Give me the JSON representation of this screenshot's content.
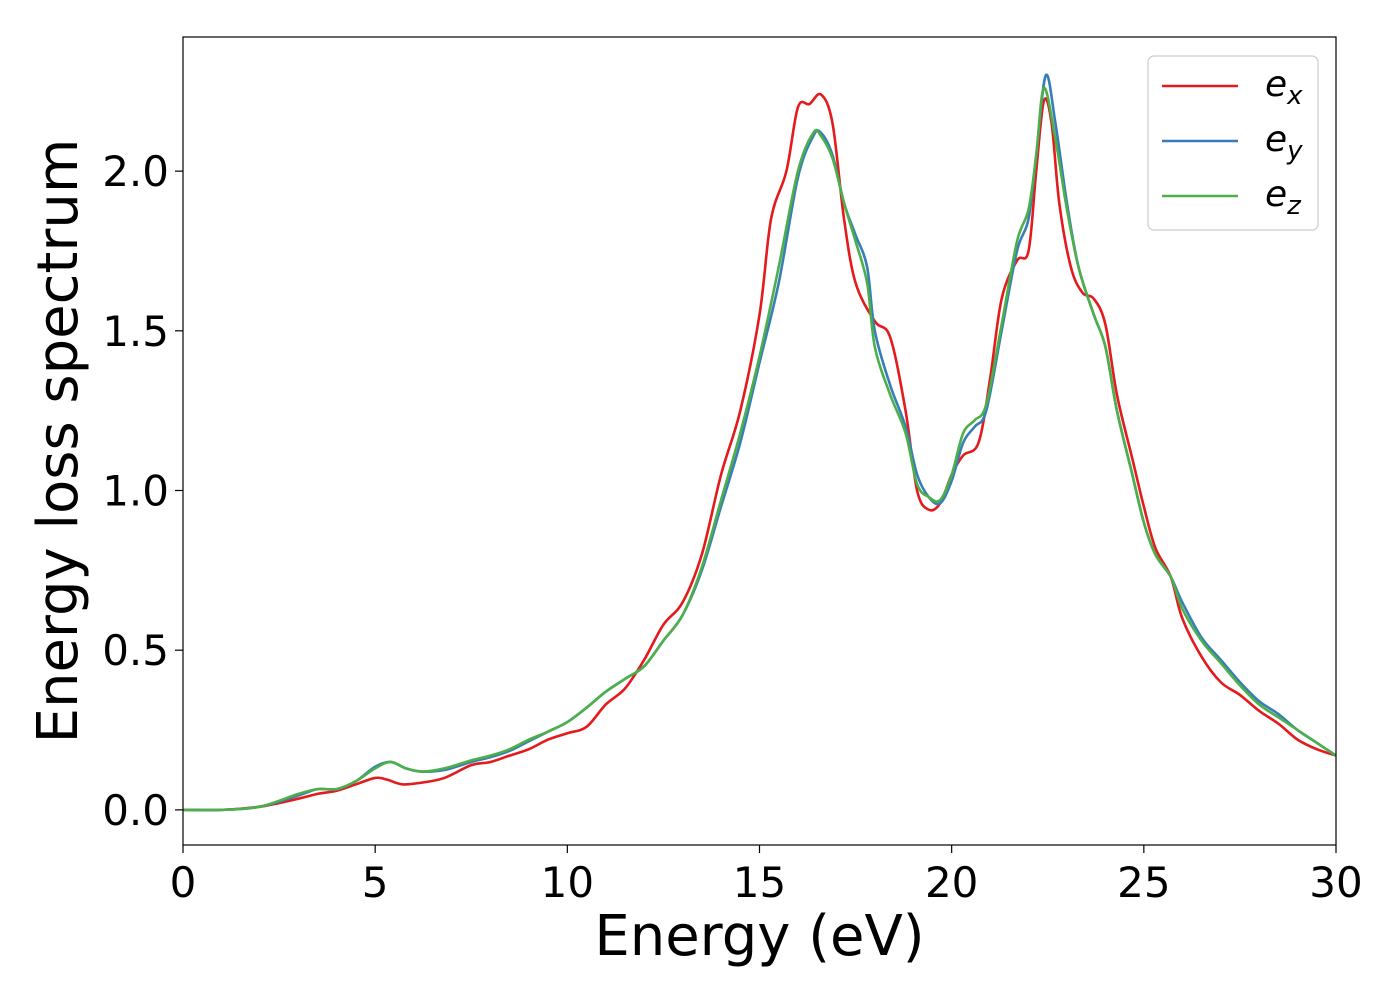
{
  "chart_data": {
    "type": "line",
    "title": "",
    "xlabel": "Energy (eV)",
    "ylabel": "Energy loss spectrum",
    "xlim": [
      0,
      30
    ],
    "ylim": [
      -0.11,
      2.42
    ],
    "xticks": [
      0,
      5,
      10,
      15,
      20,
      25,
      30
    ],
    "xtick_labels": [
      "0",
      "5",
      "10",
      "15",
      "20",
      "25",
      "30"
    ],
    "yticks": [
      0.0,
      0.5,
      1.0,
      1.5,
      2.0
    ],
    "ytick_labels": [
      "0.0",
      "0.5",
      "1.0",
      "1.5",
      "2.0"
    ],
    "grid": false,
    "legend_position": "top-right",
    "series": [
      {
        "name": "e",
        "subscript": "x",
        "color": "#e41a1c",
        "points": [
          [
            0,
            0.0
          ],
          [
            1,
            0.0
          ],
          [
            2,
            0.01
          ],
          [
            3,
            0.035
          ],
          [
            3.5,
            0.05
          ],
          [
            4,
            0.06
          ],
          [
            4.5,
            0.08
          ],
          [
            5,
            0.1
          ],
          [
            5.3,
            0.095
          ],
          [
            5.7,
            0.08
          ],
          [
            6.2,
            0.085
          ],
          [
            6.8,
            0.1
          ],
          [
            7.5,
            0.14
          ],
          [
            8,
            0.15
          ],
          [
            8.5,
            0.17
          ],
          [
            9,
            0.19
          ],
          [
            9.5,
            0.22
          ],
          [
            10,
            0.24
          ],
          [
            10.5,
            0.26
          ],
          [
            11,
            0.33
          ],
          [
            11.5,
            0.38
          ],
          [
            12,
            0.47
          ],
          [
            12.5,
            0.58
          ],
          [
            13,
            0.65
          ],
          [
            13.5,
            0.8
          ],
          [
            14,
            1.05
          ],
          [
            14.5,
            1.25
          ],
          [
            15,
            1.55
          ],
          [
            15.3,
            1.85
          ],
          [
            15.7,
            2.0
          ],
          [
            16,
            2.2
          ],
          [
            16.3,
            2.21
          ],
          [
            16.6,
            2.24
          ],
          [
            16.9,
            2.15
          ],
          [
            17.2,
            1.85
          ],
          [
            17.5,
            1.65
          ],
          [
            18,
            1.53
          ],
          [
            18.4,
            1.48
          ],
          [
            18.8,
            1.25
          ],
          [
            19.1,
            1.0
          ],
          [
            19.4,
            0.94
          ],
          [
            19.7,
            0.96
          ],
          [
            20,
            1.05
          ],
          [
            20.3,
            1.11
          ],
          [
            20.7,
            1.15
          ],
          [
            21,
            1.35
          ],
          [
            21.3,
            1.6
          ],
          [
            21.7,
            1.72
          ],
          [
            22,
            1.75
          ],
          [
            22.2,
            2.0
          ],
          [
            22.4,
            2.22
          ],
          [
            22.6,
            2.15
          ],
          [
            22.8,
            1.9
          ],
          [
            23.1,
            1.7
          ],
          [
            23.4,
            1.62
          ],
          [
            23.7,
            1.6
          ],
          [
            24,
            1.52
          ],
          [
            24.3,
            1.3
          ],
          [
            24.7,
            1.1
          ],
          [
            25,
            0.95
          ],
          [
            25.3,
            0.82
          ],
          [
            25.7,
            0.73
          ],
          [
            26,
            0.6
          ],
          [
            26.5,
            0.48
          ],
          [
            27,
            0.4
          ],
          [
            27.5,
            0.36
          ],
          [
            28,
            0.31
          ],
          [
            28.5,
            0.27
          ],
          [
            29,
            0.22
          ],
          [
            29.5,
            0.19
          ],
          [
            30,
            0.17
          ]
        ]
      },
      {
        "name": "e",
        "subscript": "y",
        "color": "#377eb8",
        "points": [
          [
            0,
            0.0
          ],
          [
            1,
            0.0
          ],
          [
            2,
            0.01
          ],
          [
            3,
            0.045
          ],
          [
            3.5,
            0.065
          ],
          [
            4,
            0.065
          ],
          [
            4.5,
            0.09
          ],
          [
            5,
            0.135
          ],
          [
            5.4,
            0.15
          ],
          [
            5.8,
            0.13
          ],
          [
            6.2,
            0.12
          ],
          [
            6.8,
            0.125
          ],
          [
            7.5,
            0.15
          ],
          [
            8,
            0.165
          ],
          [
            8.5,
            0.185
          ],
          [
            9,
            0.215
          ],
          [
            9.5,
            0.245
          ],
          [
            10,
            0.275
          ],
          [
            10.5,
            0.32
          ],
          [
            11,
            0.37
          ],
          [
            11.5,
            0.41
          ],
          [
            12,
            0.45
          ],
          [
            12.5,
            0.53
          ],
          [
            13,
            0.61
          ],
          [
            13.5,
            0.75
          ],
          [
            14,
            0.95
          ],
          [
            14.5,
            1.15
          ],
          [
            15,
            1.4
          ],
          [
            15.5,
            1.65
          ],
          [
            16,
            1.98
          ],
          [
            16.4,
            2.11
          ],
          [
            16.6,
            2.12
          ],
          [
            16.9,
            2.05
          ],
          [
            17.2,
            1.9
          ],
          [
            17.5,
            1.8
          ],
          [
            17.8,
            1.7
          ],
          [
            18,
            1.5
          ],
          [
            18.4,
            1.33
          ],
          [
            18.8,
            1.2
          ],
          [
            19.1,
            1.05
          ],
          [
            19.4,
            0.98
          ],
          [
            19.7,
            0.96
          ],
          [
            20,
            1.03
          ],
          [
            20.3,
            1.15
          ],
          [
            20.6,
            1.2
          ],
          [
            20.9,
            1.25
          ],
          [
            21.3,
            1.5
          ],
          [
            21.7,
            1.75
          ],
          [
            22,
            1.85
          ],
          [
            22.2,
            2.05
          ],
          [
            22.45,
            2.3
          ],
          [
            22.7,
            2.15
          ],
          [
            23,
            1.9
          ],
          [
            23.3,
            1.7
          ],
          [
            23.7,
            1.55
          ],
          [
            24,
            1.45
          ],
          [
            24.3,
            1.25
          ],
          [
            24.7,
            1.05
          ],
          [
            25,
            0.9
          ],
          [
            25.3,
            0.8
          ],
          [
            25.7,
            0.73
          ],
          [
            26,
            0.65
          ],
          [
            26.5,
            0.54
          ],
          [
            27,
            0.47
          ],
          [
            27.5,
            0.4
          ],
          [
            28,
            0.34
          ],
          [
            28.5,
            0.3
          ],
          [
            29,
            0.25
          ],
          [
            29.5,
            0.21
          ],
          [
            30,
            0.17
          ]
        ]
      },
      {
        "name": "e",
        "subscript": "z",
        "color": "#4daf4a",
        "points": [
          [
            0,
            0.0
          ],
          [
            1,
            0.0
          ],
          [
            2,
            0.01
          ],
          [
            3,
            0.05
          ],
          [
            3.5,
            0.065
          ],
          [
            4,
            0.065
          ],
          [
            4.5,
            0.09
          ],
          [
            5,
            0.13
          ],
          [
            5.4,
            0.15
          ],
          [
            5.8,
            0.13
          ],
          [
            6.2,
            0.12
          ],
          [
            6.8,
            0.13
          ],
          [
            7.5,
            0.155
          ],
          [
            8,
            0.17
          ],
          [
            8.5,
            0.19
          ],
          [
            9,
            0.22
          ],
          [
            9.5,
            0.245
          ],
          [
            10,
            0.275
          ],
          [
            10.5,
            0.32
          ],
          [
            11,
            0.37
          ],
          [
            11.5,
            0.41
          ],
          [
            12,
            0.45
          ],
          [
            12.5,
            0.53
          ],
          [
            13,
            0.61
          ],
          [
            13.5,
            0.76
          ],
          [
            14,
            0.97
          ],
          [
            14.5,
            1.18
          ],
          [
            15,
            1.42
          ],
          [
            15.5,
            1.7
          ],
          [
            16,
            2.0
          ],
          [
            16.4,
            2.12
          ],
          [
            16.6,
            2.11
          ],
          [
            16.9,
            2.04
          ],
          [
            17.2,
            1.9
          ],
          [
            17.5,
            1.78
          ],
          [
            17.8,
            1.65
          ],
          [
            18,
            1.45
          ],
          [
            18.4,
            1.3
          ],
          [
            18.8,
            1.18
          ],
          [
            19.1,
            1.02
          ],
          [
            19.4,
            0.98
          ],
          [
            19.7,
            0.97
          ],
          [
            20,
            1.05
          ],
          [
            20.3,
            1.18
          ],
          [
            20.6,
            1.22
          ],
          [
            20.9,
            1.27
          ],
          [
            21.3,
            1.52
          ],
          [
            21.7,
            1.78
          ],
          [
            22,
            1.88
          ],
          [
            22.2,
            2.05
          ],
          [
            22.4,
            2.26
          ],
          [
            22.7,
            2.1
          ],
          [
            23,
            1.88
          ],
          [
            23.3,
            1.7
          ],
          [
            23.7,
            1.55
          ],
          [
            24,
            1.45
          ],
          [
            24.3,
            1.25
          ],
          [
            24.7,
            1.05
          ],
          [
            25,
            0.9
          ],
          [
            25.3,
            0.8
          ],
          [
            25.7,
            0.73
          ],
          [
            26,
            0.63
          ],
          [
            26.5,
            0.53
          ],
          [
            27,
            0.46
          ],
          [
            27.5,
            0.39
          ],
          [
            28,
            0.33
          ],
          [
            28.5,
            0.29
          ],
          [
            29,
            0.25
          ],
          [
            29.5,
            0.21
          ],
          [
            30,
            0.17
          ]
        ]
      }
    ]
  }
}
